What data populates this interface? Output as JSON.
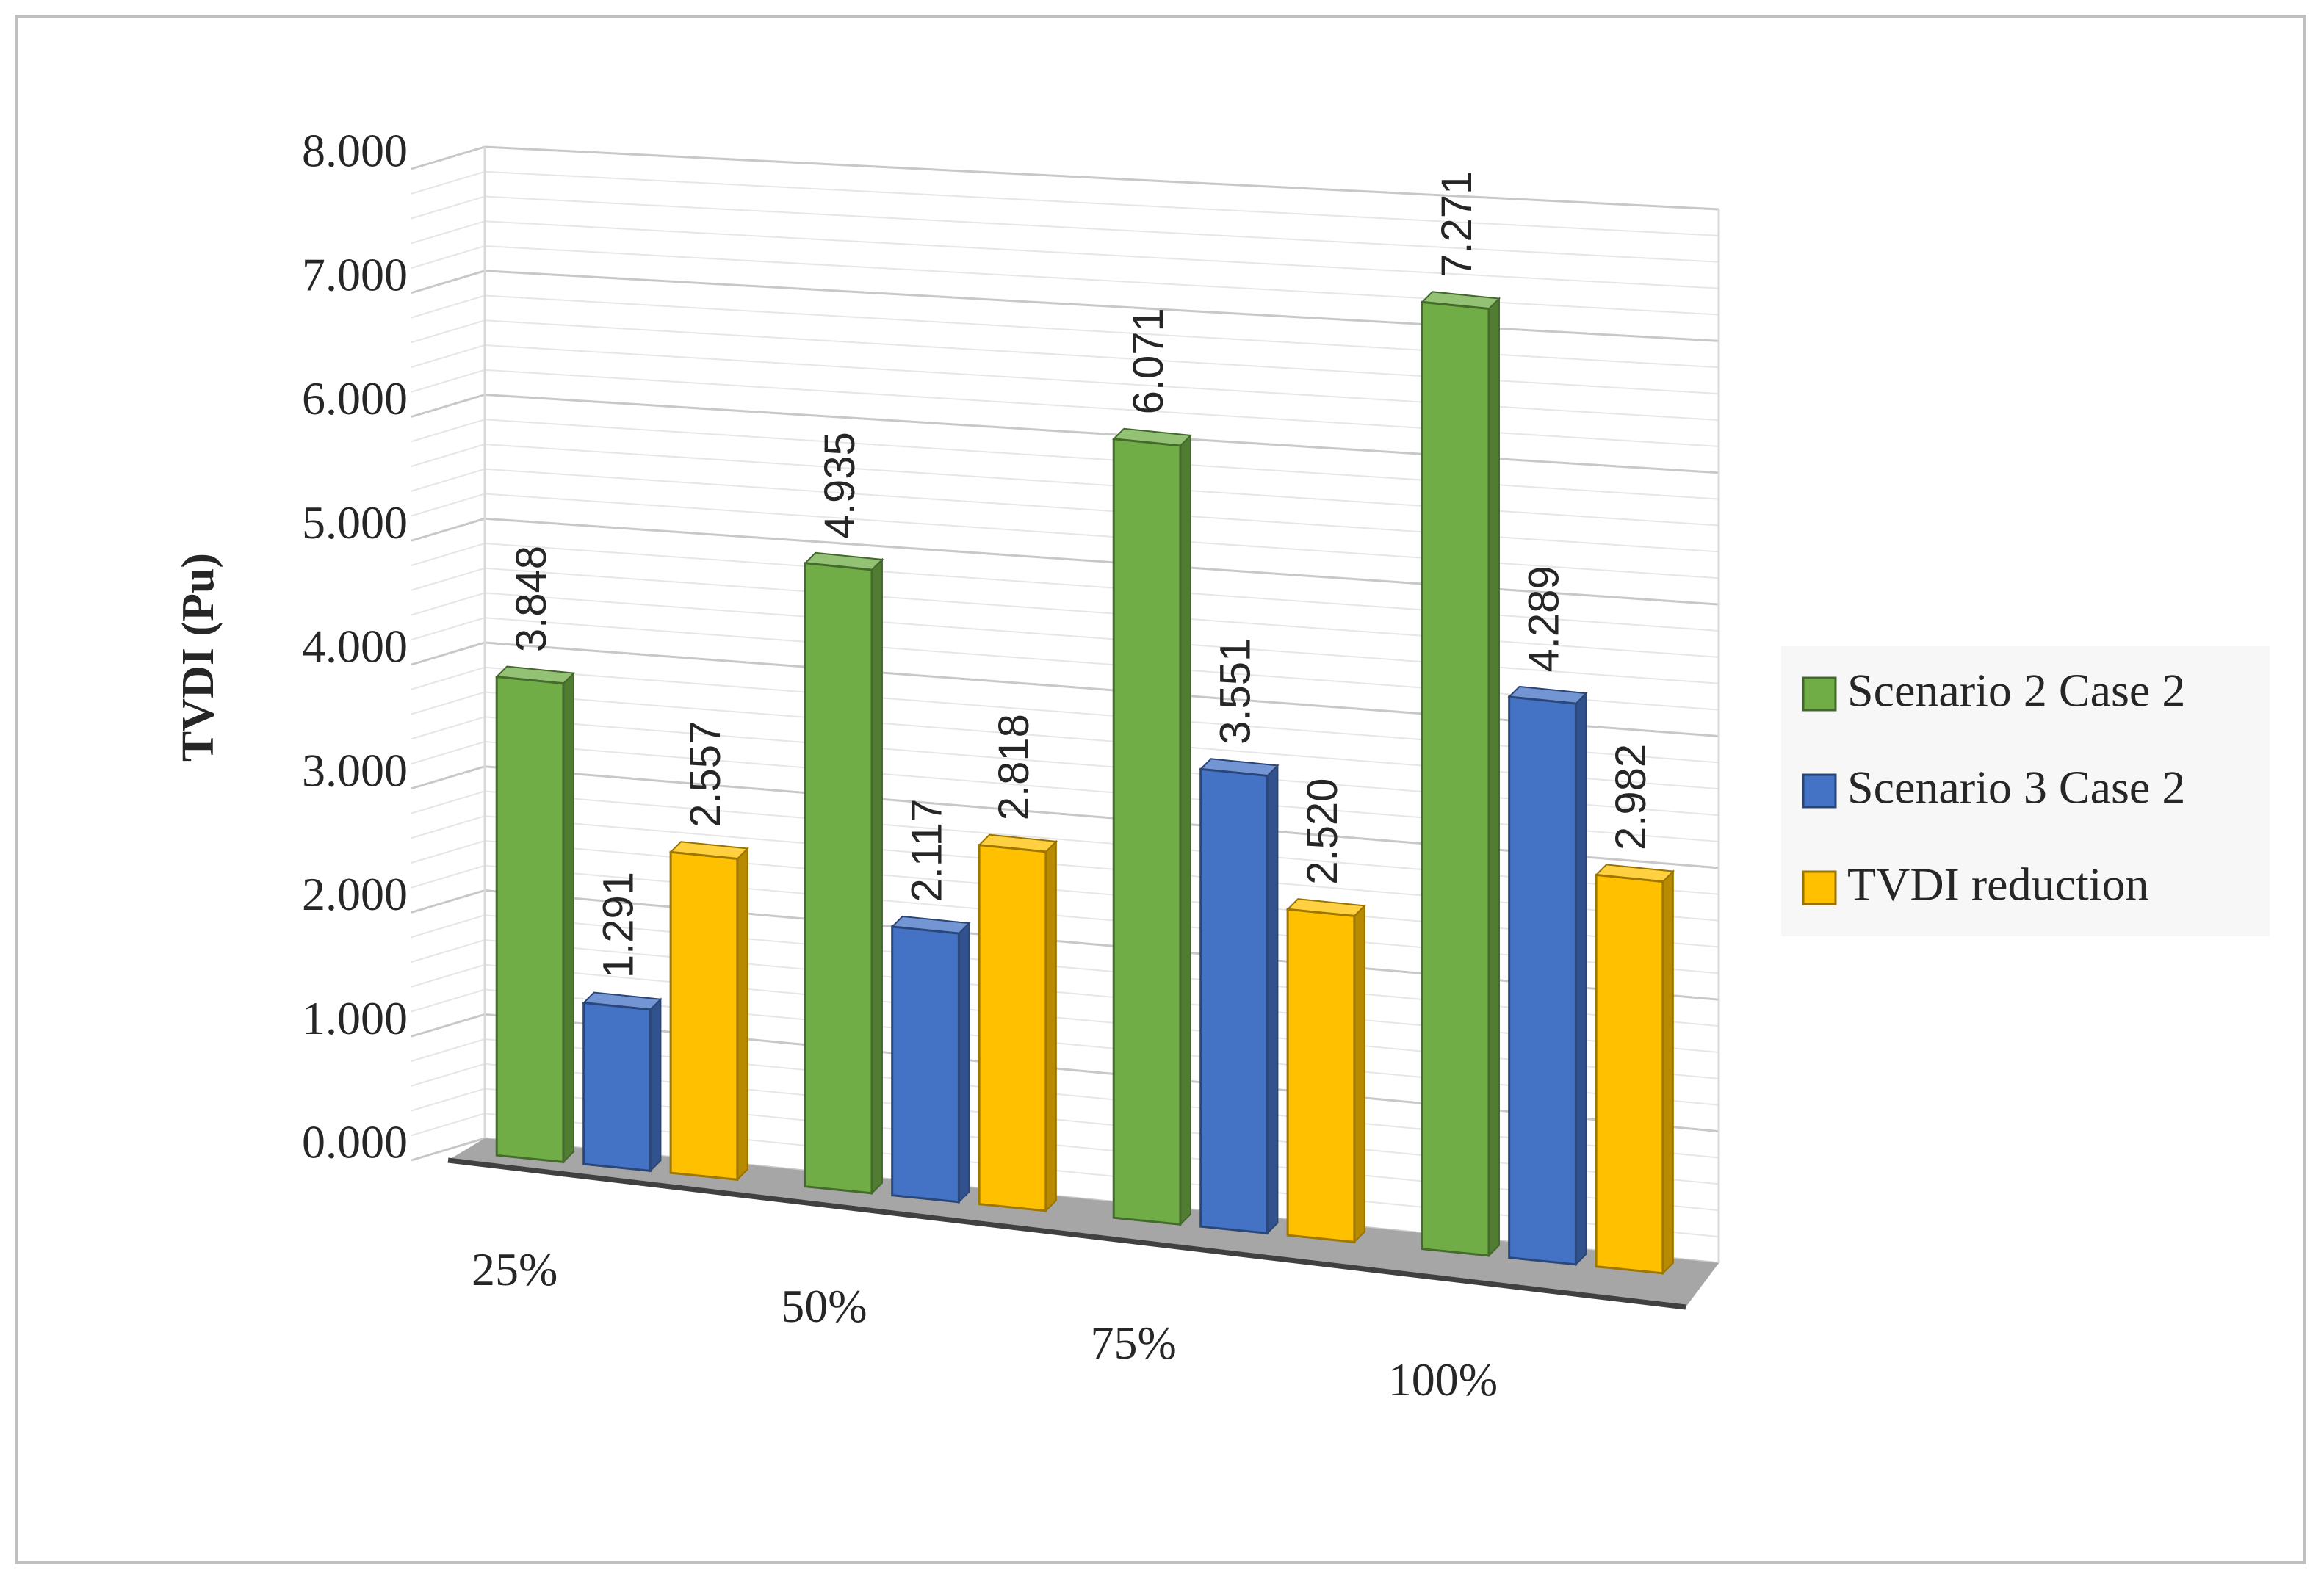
{
  "chart_data": {
    "type": "bar",
    "variant": "3d-clustered-column",
    "title": "",
    "xlabel": "",
    "ylabel": "TVDI (Pu)",
    "ylim": [
      0,
      8
    ],
    "yticks": [
      "0.000",
      "1.000",
      "2.000",
      "3.000",
      "4.000",
      "5.000",
      "6.000",
      "7.000",
      "8.000"
    ],
    "categories": [
      "25%",
      "50%",
      "75%",
      "100%"
    ],
    "series": [
      {
        "name": "Scenario 2 Case 2",
        "values": [
          3.848,
          4.935,
          6.071,
          7.271
        ],
        "labels": [
          "3.848",
          "4.935",
          "6.071",
          "7.271"
        ],
        "color": "#70ad47"
      },
      {
        "name": "Scenario 3 Case 2",
        "values": [
          1.291,
          2.117,
          3.551,
          4.289
        ],
        "labels": [
          "1.291",
          "2.117",
          "3.551",
          "4.289"
        ],
        "color": "#4472c4"
      },
      {
        "name": "TVDI reduction",
        "values": [
          2.557,
          2.818,
          2.52,
          2.982
        ],
        "labels": [
          "2.557",
          "2.818",
          "2.520",
          "2.982"
        ],
        "color": "#ffc000"
      }
    ],
    "grid": true,
    "legend_position": "right",
    "data_labels": true
  }
}
